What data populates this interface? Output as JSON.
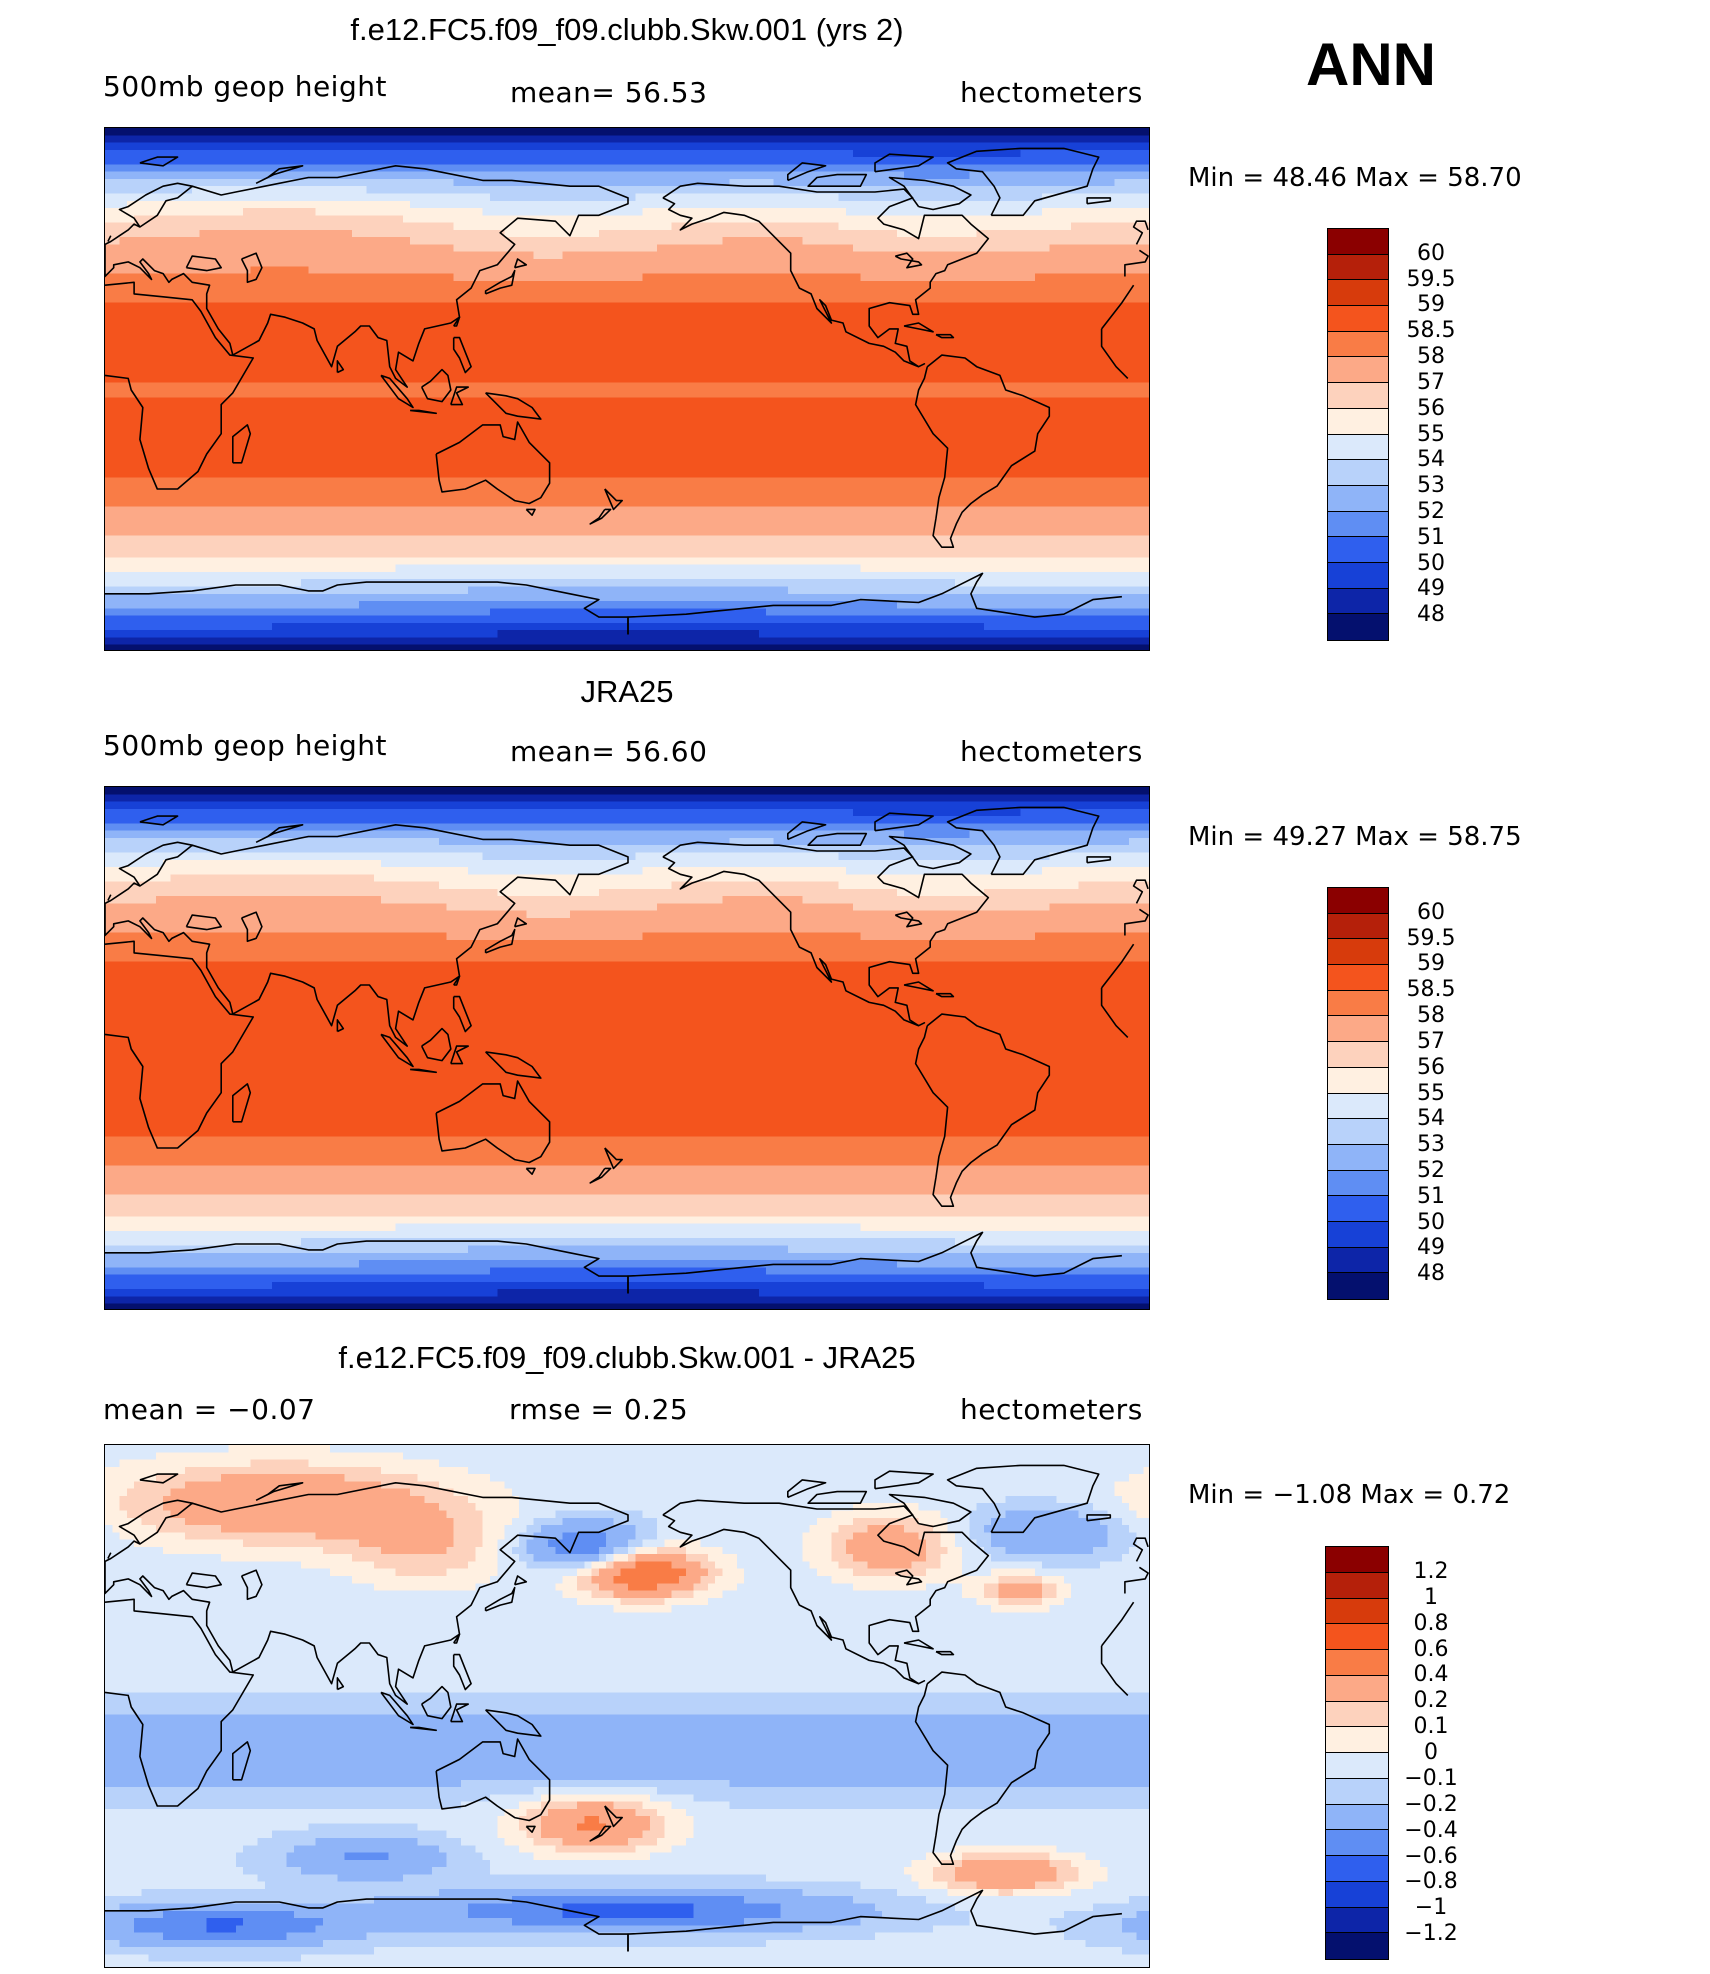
{
  "season": "ANN",
  "panels": [
    {
      "title": "f.e12.FC5.f09_f09.clubb.Skw.001 (yrs 2)",
      "left_label": "500mb geop height",
      "center_label": "mean=  56.53",
      "right_label": "hectometers",
      "minmax": "Min =   48.46  Max =   58.70",
      "colorbar": {
        "labels": [
          "60",
          "59.5",
          "59",
          "58.5",
          "58",
          "57",
          "56",
          "55",
          "54",
          "53",
          "52",
          "51",
          "50",
          "49",
          "48"
        ],
        "colors": [
          "#8b0000",
          "#b5200a",
          "#d73b0c",
          "#f4541d",
          "#f97c46",
          "#fca987",
          "#fdd2bd",
          "#fff0e1",
          "#dbe9fb",
          "#b8d2fa",
          "#8fb4f8",
          "#5f8ef3",
          "#2f5fee",
          "#1741d7",
          "#0d25a8",
          "#04106e"
        ]
      },
      "field": {
        "type": "model"
      }
    },
    {
      "title": "JRA25",
      "left_label": "500mb geop height",
      "center_label": "mean=  56.60",
      "right_label": "hectometers",
      "minmax": "Min =   49.27  Max =   58.75",
      "colorbar": {
        "labels": [
          "60",
          "59.5",
          "59",
          "58.5",
          "58",
          "57",
          "56",
          "55",
          "54",
          "53",
          "52",
          "51",
          "50",
          "49",
          "48"
        ],
        "colors": [
          "#8b0000",
          "#b5200a",
          "#d73b0c",
          "#f4541d",
          "#f97c46",
          "#fca987",
          "#fdd2bd",
          "#fff0e1",
          "#dbe9fb",
          "#b8d2fa",
          "#8fb4f8",
          "#5f8ef3",
          "#2f5fee",
          "#1741d7",
          "#0d25a8",
          "#04106e"
        ]
      },
      "field": {
        "type": "obs"
      }
    },
    {
      "title": "f.e12.FC5.f09_f09.clubb.Skw.001 - JRA25",
      "left_label": "mean =   −0.07",
      "center_label": "rmse =    0.25",
      "right_label": "hectometers",
      "minmax": "Min =   −1.08  Max =    0.72",
      "colorbar": {
        "labels": [
          "1.2",
          "1",
          "0.8",
          "0.6",
          "0.4",
          "0.2",
          "0.1",
          "0",
          "−0.1",
          "−0.2",
          "−0.4",
          "−0.6",
          "−0.8",
          "−1",
          "−1.2"
        ],
        "colors": [
          "#8b0000",
          "#b5200a",
          "#d73b0c",
          "#f4541d",
          "#f97c46",
          "#fca987",
          "#fdd2bd",
          "#fff0e1",
          "#dbe9fb",
          "#b8d2fa",
          "#8fb4f8",
          "#5f8ef3",
          "#2f5fee",
          "#1741d7",
          "#0d25a8",
          "#04106e"
        ]
      },
      "field": {
        "type": "diff"
      }
    }
  ]
}
